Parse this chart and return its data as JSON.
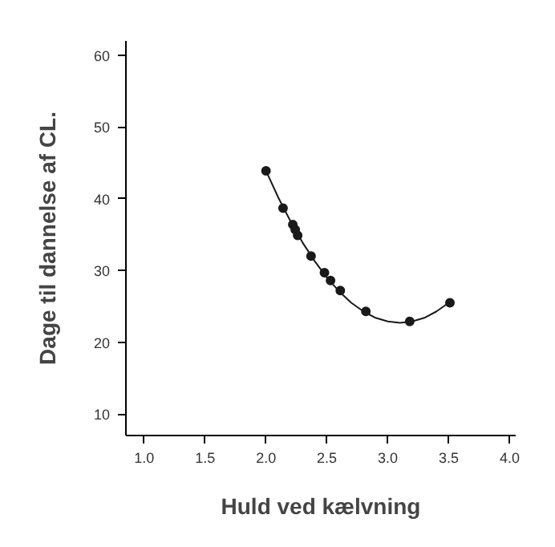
{
  "chart_data": {
    "type": "scatter",
    "xlabel": "Huld ved kælvning",
    "ylabel": "Dage til dannelse af CL.",
    "xlim": [
      0.85,
      4.05
    ],
    "ylim": [
      7,
      62
    ],
    "xticks": [
      {
        "value": 1,
        "label": "1.0"
      },
      {
        "value": 1.5,
        "label": "1.5"
      },
      {
        "value": 2,
        "label": "2.0"
      },
      {
        "value": 2.5,
        "label": "2.5"
      },
      {
        "value": 3,
        "label": "3.0"
      },
      {
        "value": 3.5,
        "label": "3.5"
      },
      {
        "value": 4,
        "label": "4.0"
      }
    ],
    "yticks": [
      10,
      20,
      30,
      40,
      50,
      60
    ],
    "grid": false,
    "marker": "circle",
    "series": [
      {
        "color": "#1a1a1a",
        "x": [
          2.0,
          2.14,
          2.22,
          2.24,
          2.26,
          2.37,
          2.48,
          2.53,
          2.61,
          2.82,
          3.18,
          3.51
        ],
        "values": [
          43.9,
          38.7,
          36.4,
          35.7,
          34.9,
          32.0,
          29.7,
          28.6,
          27.2,
          24.3,
          22.9,
          25.5
        ]
      },
      {
        "type": "line",
        "color": "#1a1a1a",
        "marker": "none",
        "x": [
          2.0,
          2.1,
          2.2,
          2.3,
          2.4,
          2.5,
          2.6,
          2.7,
          2.8,
          2.9,
          3.0,
          3.1,
          3.2,
          3.3,
          3.4,
          3.5
        ],
        "values": [
          43.9,
          40.2,
          36.9,
          33.9,
          31.3,
          29.0,
          27.1,
          25.5,
          24.3,
          23.4,
          22.9,
          22.7,
          22.9,
          23.4,
          24.3,
          25.5
        ]
      }
    ]
  }
}
